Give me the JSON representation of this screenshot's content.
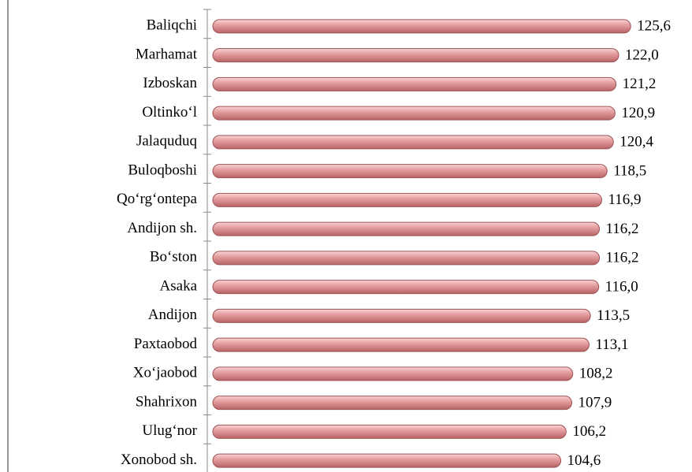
{
  "chart_data": {
    "type": "bar",
    "orientation": "horizontal",
    "categories": [
      "Baliqchi",
      "Marhamat",
      "Izboskan",
      "Oltinko‘l",
      "Jalaquduq",
      "Buloqboshi",
      "Qo‘rg‘ontepa",
      "Andijon sh.",
      "Bo‘ston",
      "Asaka",
      "Andijon",
      "Paxtaobod",
      "Xo‘jaobod",
      "Shahrixon",
      "Ulug‘nor",
      "Xonobod sh."
    ],
    "values": [
      125.6,
      122.0,
      121.2,
      120.9,
      120.4,
      118.5,
      116.9,
      116.2,
      116.2,
      116.0,
      113.5,
      113.1,
      108.2,
      107.9,
      106.2,
      104.6
    ],
    "value_labels": [
      "125,6",
      "122,0",
      "121,2",
      "120,9",
      "120,4",
      "118,5",
      "116,9",
      "116,2",
      "116,2",
      "116,0",
      "113,5",
      "113,1",
      "108,2",
      "107,9",
      "106,2",
      "104,6"
    ],
    "color": "#e8a3a5",
    "xlim": [
      0,
      140
    ]
  }
}
